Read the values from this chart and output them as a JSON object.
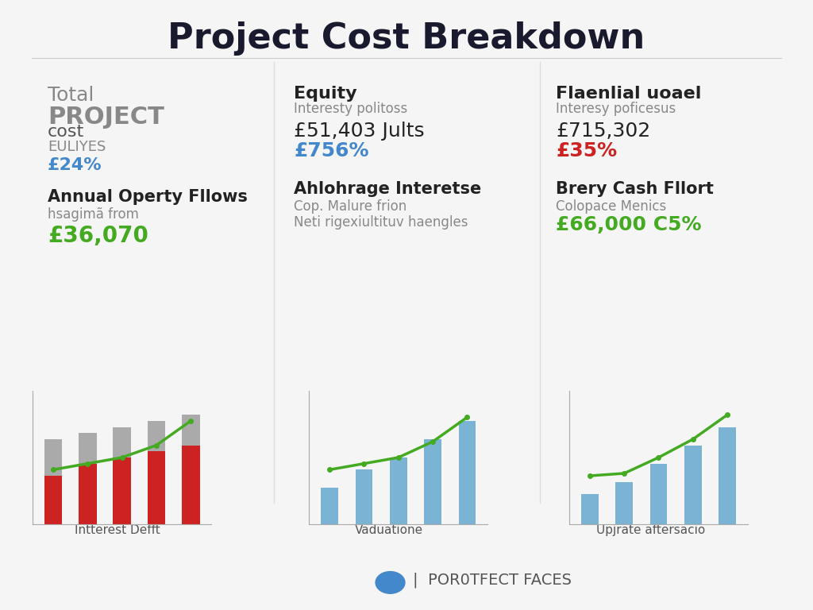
{
  "title": "Project Cost Breakdown",
  "bg_color": "#f5f5f5",
  "title_color": "#1a1a2e",
  "col1": {
    "line1": "Total",
    "line2": "PROJECT",
    "line3": "cost",
    "line4": "EULIYES",
    "line5": "£24%",
    "section2_title": "Annual Operty Fllows",
    "section2_sub": "hsagimã from",
    "section2_val": "£36,070",
    "chart_label": "Intterest Defft"
  },
  "col2": {
    "header": "Equity",
    "sub_header": "Interesty politoss",
    "value": "£51,403 Jults",
    "percent": "£756%",
    "section2_title": "Ahlohrage Interetse",
    "section2_sub1": "Cop. Malure frion",
    "section2_sub2": "Neti rigexiultituv haengles",
    "chart_label": "Vaduatione"
  },
  "col3": {
    "header": "Flaenlial uoael",
    "sub_header": "Interesy poficesus",
    "value": "£715,302",
    "percent": "£35%",
    "section2_title": "Brery Cash Fllort",
    "section2_sub": "Colopace Menics",
    "section2_val": "£66,000 C5%",
    "chart_label": "Upjrate aftersacio"
  },
  "footer": "POR0TFECT FACES",
  "chart1_bars_red": [
    0.4,
    0.5,
    0.55,
    0.6,
    0.65
  ],
  "chart1_bars_gray": [
    0.7,
    0.75,
    0.8,
    0.85,
    0.9
  ],
  "chart1_line": [
    0.45,
    0.5,
    0.55,
    0.65,
    0.85
  ],
  "chart2_bars": [
    0.3,
    0.45,
    0.55,
    0.7,
    0.85
  ],
  "chart2_line": [
    0.45,
    0.5,
    0.55,
    0.68,
    0.88
  ],
  "chart3_bars": [
    0.25,
    0.35,
    0.5,
    0.65,
    0.8
  ],
  "chart3_line": [
    0.4,
    0.42,
    0.55,
    0.7,
    0.9
  ],
  "bar_color_red": "#cc2222",
  "bar_color_gray": "#aaaaaa",
  "bar_color_blue": "#7ab3d3",
  "line_color": "#44aa22",
  "percent_color_blue": "#4488cc",
  "percent_color_red": "#cc2222",
  "percent_color_green": "#44aa22",
  "label_bold_color": "#222222",
  "label_gray_color": "#888888"
}
